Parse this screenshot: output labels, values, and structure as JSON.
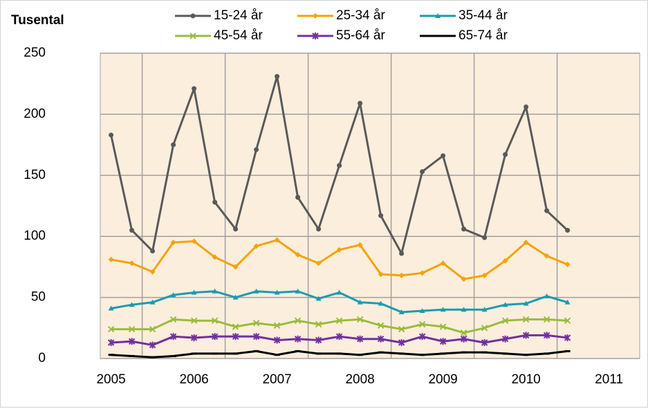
{
  "chart_data": {
    "type": "line",
    "ylabel": "Tusental",
    "x": [
      2005,
      2005.25,
      2005.5,
      2005.75,
      2006,
      2006.25,
      2006.5,
      2006.75,
      2007,
      2007.25,
      2007.5,
      2007.75,
      2008,
      2008.25,
      2008.5,
      2008.75,
      2009,
      2009.25,
      2009.5,
      2009.75,
      2010,
      2010.25,
      2010.5
    ],
    "series": [
      {
        "name": "15-24 år",
        "color": "#595959",
        "marker": "circle",
        "values": [
          183,
          105,
          88,
          175,
          221,
          128,
          106,
          171,
          231,
          132,
          106,
          158,
          209,
          117,
          86,
          153,
          166,
          106,
          99,
          167,
          206,
          121,
          105
        ]
      },
      {
        "name": "25-34 år",
        "color": "#f5a300",
        "marker": "diamond",
        "values": [
          81,
          78,
          71,
          95,
          96,
          83,
          75,
          92,
          97,
          85,
          78,
          89,
          93,
          69,
          68,
          70,
          78,
          65,
          68,
          80,
          95,
          84,
          77
        ]
      },
      {
        "name": "35-44 år",
        "color": "#1a9bb0",
        "marker": "triangle",
        "values": [
          41,
          44,
          46,
          52,
          54,
          55,
          50,
          55,
          54,
          55,
          49,
          54,
          46,
          45,
          38,
          39,
          40,
          40,
          40,
          44,
          45,
          51,
          46
        ]
      },
      {
        "name": "45-54 år",
        "color": "#9bbb3b",
        "marker": "cross",
        "values": [
          24,
          24,
          24,
          32,
          31,
          31,
          26,
          29,
          27,
          31,
          28,
          31,
          32,
          27,
          24,
          28,
          26,
          21,
          25,
          31,
          32,
          32,
          31
        ]
      },
      {
        "name": "55-64 år",
        "color": "#7030a0",
        "marker": "star",
        "values": [
          13,
          14,
          11,
          18,
          17,
          18,
          18,
          18,
          15,
          16,
          15,
          18,
          16,
          16,
          13,
          18,
          14,
          16,
          13,
          16,
          19,
          19,
          17
        ]
      },
      {
        "name": "65-74 år",
        "color": "#000000",
        "marker": "dash",
        "values": [
          3,
          2,
          1,
          2,
          4,
          4,
          4,
          6,
          3,
          6,
          4,
          4,
          3,
          5,
          4,
          3,
          4,
          5,
          5,
          4,
          3,
          4,
          6
        ]
      }
    ],
    "xlim": [
      2004.87,
      2011.37
    ],
    "xticks": [
      2005,
      2006,
      2007,
      2008,
      2009,
      2010,
      2011
    ],
    "ylim": [
      0,
      250
    ],
    "yticks": [
      0,
      50,
      100,
      150,
      200,
      250
    ],
    "grid": true,
    "plot_background": "#fbeedd"
  }
}
